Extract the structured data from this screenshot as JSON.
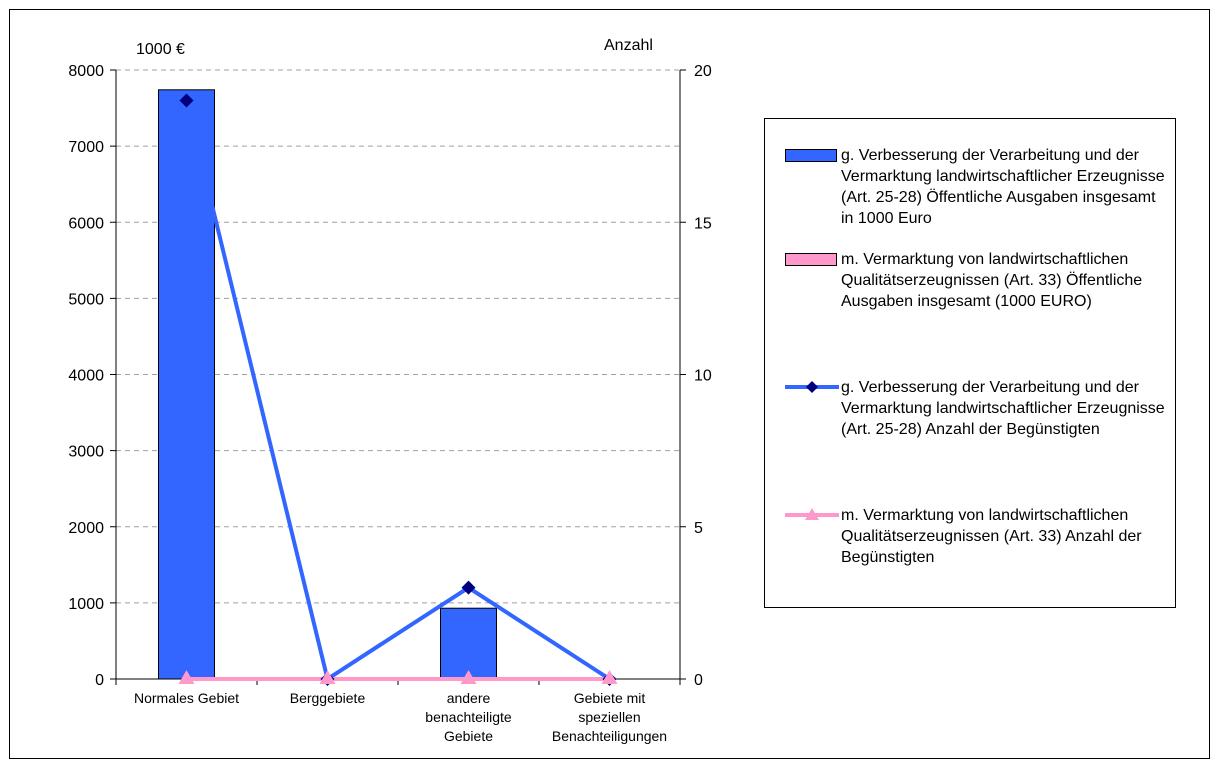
{
  "chart_data": {
    "type": "bar",
    "categories": [
      "Normales Gebiet",
      "Berggebiete",
      "andere benachteiligte Gebiete",
      "Gebiete mit speziellen Benachteiligungen"
    ],
    "category_lines": [
      [
        "Normales Gebiet"
      ],
      [
        "Berggebiete"
      ],
      [
        "andere",
        "benachteiligte",
        "Gebiete"
      ],
      [
        "Gebiete mit",
        "speziellen",
        "Benachteiligungen"
      ]
    ],
    "y_left_label": "1000 €",
    "y_right_label": "Anzahl",
    "y_left_lim": [
      0,
      8000
    ],
    "y_left_ticks": [
      "0",
      "1000",
      "2000",
      "3000",
      "4000",
      "5000",
      "6000",
      "7000",
      "8000"
    ],
    "y_right_lim": [
      0,
      20
    ],
    "y_right_ticks": [
      "0",
      "5",
      "10",
      "15",
      "20"
    ],
    "grid": true,
    "legend_position": "right",
    "series": [
      {
        "name": "g. Verbesserung der Verarbeitung und der Vermarktung landwirtschaftlicher Erzeugnisse (Art. 25-28) Öffentliche Ausgaben insgesamt in 1000 Euro",
        "kind": "bar",
        "axis": "left",
        "color": "#3366ff",
        "values": [
          7740,
          0,
          930,
          0
        ]
      },
      {
        "name": "m. Vermarktung von landwirtschaftlichen Qualitätserzeugnissen (Art. 33) Öffentliche Ausgaben insgesamt (1000 EURO)",
        "kind": "bar",
        "axis": "left",
        "color": "#ff99cc",
        "values": [
          0,
          0,
          0,
          0
        ]
      },
      {
        "name": "g. Verbesserung der Verarbeitung und der Vermarktung landwirtschaftlicher Erzeugnisse (Art. 25-28) Anzahl der Begünstigten",
        "kind": "line",
        "axis": "right",
        "color": "#3366ff",
        "marker": "diamond",
        "marker_color": "#000080",
        "values": [
          19,
          0,
          3,
          0
        ]
      },
      {
        "name": "m. Vermarktung von landwirtschaftlichen Qualitätserzeugnissen (Art. 33) Anzahl der Begünstigten",
        "kind": "line",
        "axis": "right",
        "color": "#ff99cc",
        "marker": "triangle",
        "marker_color": "#ff99cc",
        "values": [
          0,
          0,
          0,
          0
        ]
      }
    ]
  }
}
